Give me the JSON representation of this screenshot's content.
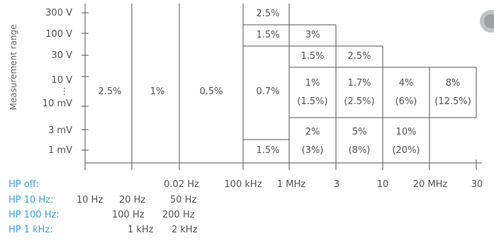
{
  "chart_data": {
    "type": "table",
    "ylabel": "Measurement range",
    "y_labels": [
      "300 V",
      "100 V",
      "30 V",
      "10 V",
      "⋮",
      "10 mV",
      "3 mV",
      "1 mV"
    ],
    "x_labels": [
      "0.02 Hz",
      "100 kHz",
      "1 MHz",
      "3",
      "10",
      "20 MHz",
      "30"
    ],
    "cells": [
      {
        "text": "2.5%"
      },
      {
        "text": "1%"
      },
      {
        "text": "0.5%"
      },
      {
        "text": "0.7%"
      },
      {
        "text": "2.5%"
      },
      {
        "text": "1.5%"
      },
      {
        "text": "3%"
      },
      {
        "text": "1.5%"
      },
      {
        "text": "2.5%"
      },
      {
        "text": "1%"
      },
      {
        "text": "(1.5%)"
      },
      {
        "text": "1.7%"
      },
      {
        "text": "(2.5%)"
      },
      {
        "text": "4%"
      },
      {
        "text": "(6%)"
      },
      {
        "text": "8%"
      },
      {
        "text": "(12.5%)"
      },
      {
        "text": "2%"
      },
      {
        "text": "(3%)"
      },
      {
        "text": "5%"
      },
      {
        "text": "(8%)"
      },
      {
        "text": "10%"
      },
      {
        "text": "(20%)"
      },
      {
        "text": "1.5%"
      }
    ],
    "hp_rows": [
      {
        "label": "HP off:",
        "values": []
      },
      {
        "label": "HP   10 Hz:",
        "values": [
          "10 Hz",
          "20 Hz",
          "50 Hz"
        ]
      },
      {
        "label": "HP 100 Hz:",
        "values": [
          "100 Hz",
          "200 Hz"
        ]
      },
      {
        "label": "HP    1 kHz:",
        "values": [
          "1 kHz",
          "2 kHz"
        ]
      }
    ]
  },
  "colors": {
    "text": "#555555",
    "hp": "#3aa3dd",
    "line": "#555555"
  }
}
